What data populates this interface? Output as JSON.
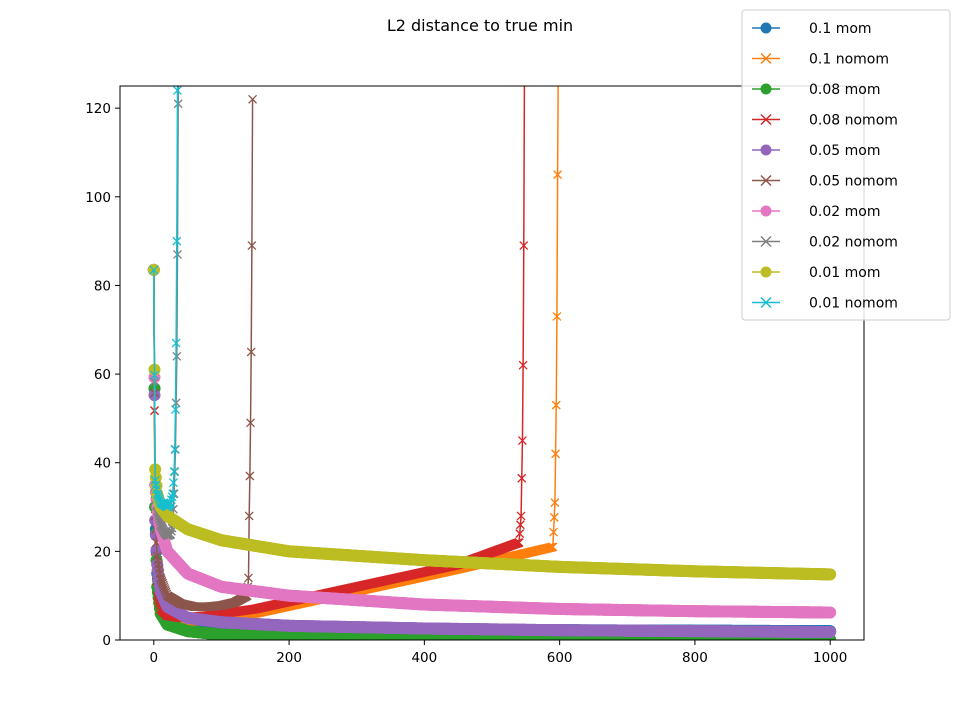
{
  "chart_data": {
    "type": "line",
    "title": "L2 distance to true min",
    "xlabel": "",
    "ylabel": "",
    "xlim": [
      -50,
      1050
    ],
    "ylim": [
      0,
      125
    ],
    "x_ticks": [
      0,
      200,
      400,
      600,
      800,
      1000
    ],
    "y_ticks": [
      0,
      20,
      40,
      60,
      80,
      100,
      120
    ],
    "grid": false,
    "legend_position": "top-right",
    "series": [
      {
        "name": "0.1 mom",
        "color": "#1f77b4",
        "marker": "circle",
        "x": [
          0,
          2,
          5,
          10,
          20,
          50,
          100,
          200,
          400,
          600,
          800,
          1000
        ],
        "y": [
          83.5,
          30,
          15,
          8,
          5,
          3.5,
          3,
          2.5,
          2.3,
          2.2,
          2.1,
          2.0
        ]
      },
      {
        "name": "0.1 nomom",
        "color": "#ff7f0e",
        "marker": "x",
        "x": [
          0,
          2,
          5,
          10,
          20,
          40,
          80,
          150,
          300,
          450,
          590,
          593,
          595,
          596,
          597,
          598
        ],
        "y": [
          83.5,
          20,
          9,
          6,
          4.5,
          4.0,
          4.5,
          6,
          11,
          16,
          21,
          31,
          53,
          73,
          105,
          130
        ]
      },
      {
        "name": "0.08 mom",
        "color": "#2ca02c",
        "marker": "circle",
        "x": [
          0,
          2,
          5,
          10,
          20,
          50,
          100,
          200,
          400,
          600,
          800,
          1000
        ],
        "y": [
          83.5,
          30,
          12,
          6,
          3.5,
          2,
          1.2,
          0.6,
          0.3,
          0.2,
          0.15,
          0.1
        ]
      },
      {
        "name": "0.08 nomom",
        "color": "#d62728",
        "marker": "x",
        "x": [
          0,
          2,
          5,
          10,
          20,
          40,
          80,
          150,
          300,
          450,
          540,
          543,
          545,
          546,
          547,
          548
        ],
        "y": [
          83.5,
          20,
          10,
          7,
          5.5,
          5,
          5.5,
          7,
          12,
          17,
          22,
          28,
          45,
          62,
          89,
          130
        ]
      },
      {
        "name": "0.05 mom",
        "color": "#9467bd",
        "marker": "circle",
        "x": [
          0,
          2,
          5,
          10,
          20,
          50,
          100,
          200,
          400,
          600,
          800,
          1000
        ],
        "y": [
          83.5,
          27,
          17,
          11,
          7.5,
          5,
          4,
          3.2,
          2.6,
          2.2,
          2.0,
          1.8
        ]
      },
      {
        "name": "0.05 nomom",
        "color": "#8c564b",
        "marker": "x",
        "x": [
          0,
          2,
          5,
          10,
          20,
          40,
          60,
          80,
          100,
          120,
          138,
          140,
          141,
          142,
          143,
          144,
          145,
          146
        ],
        "y": [
          83.5,
          28,
          19,
          14,
          10,
          8.2,
          7.5,
          7.5,
          7.8,
          8.5,
          10,
          14,
          28,
          37,
          49,
          65,
          89,
          122
        ]
      },
      {
        "name": "0.02 mom",
        "color": "#e377c2",
        "marker": "circle",
        "x": [
          0,
          2,
          5,
          10,
          20,
          50,
          100,
          200,
          400,
          600,
          800,
          1000
        ],
        "y": [
          83.5,
          35,
          30,
          25,
          20,
          15,
          12,
          10,
          8,
          7,
          6.5,
          6.2
        ]
      },
      {
        "name": "0.02 nomom",
        "color": "#7f7f7f",
        "marker": "x",
        "x": [
          0,
          2,
          5,
          10,
          15,
          20,
          25,
          28,
          30,
          32,
          34,
          35,
          36,
          37
        ],
        "y": [
          83.5,
          33,
          29,
          26,
          24.5,
          23.5,
          23.8,
          26,
          33,
          43,
          64,
          87,
          121,
          130
        ]
      },
      {
        "name": "0.01 mom",
        "color": "#bcbd22",
        "marker": "circle",
        "x": [
          0,
          2,
          5,
          10,
          20,
          50,
          100,
          200,
          400,
          600,
          800,
          1000
        ],
        "y": [
          83.5,
          38.5,
          33,
          30,
          28,
          25,
          22.5,
          20,
          18,
          16.5,
          15.5,
          14.8
        ]
      },
      {
        "name": "0.01 nomom",
        "color": "#17becf",
        "marker": "x",
        "x": [
          0,
          2,
          5,
          10,
          15,
          20,
          25,
          28,
          30,
          31,
          32,
          33,
          34,
          35,
          36
        ],
        "y": [
          83.5,
          36,
          33,
          31,
          30.5,
          30,
          31,
          33,
          38,
          43,
          52,
          67,
          90,
          124,
          130
        ]
      }
    ]
  }
}
